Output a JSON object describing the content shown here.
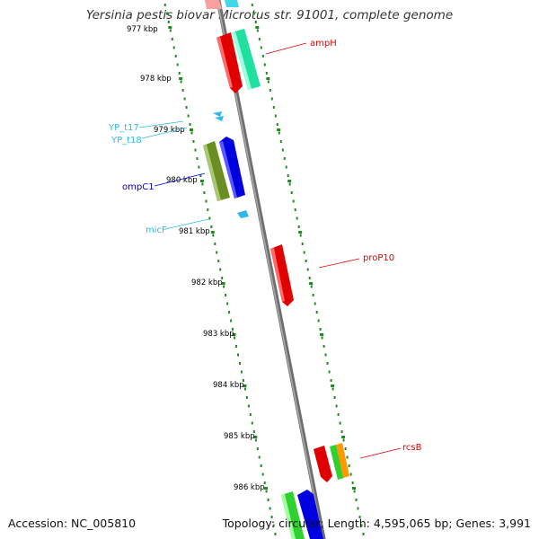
{
  "title": "Yersinia pestis biovar Microtus str. 91001, complete genome",
  "footer": {
    "accession": "Accession: NC_005810",
    "summary": "Topology: circular; Length: 4,595,065 bp; Genes: 3,991"
  },
  "ticks": [
    "977 kbp",
    "978 kbp",
    "979 kbp",
    "980 kbp",
    "981 kbp",
    "982 kbp",
    "983 kbp",
    "984 kbp",
    "985 kbp",
    "986 kbp"
  ],
  "genes": [
    {
      "label": "ampH",
      "color": "#e00000"
    },
    {
      "label": "YP_t17",
      "color": "#30b8e8"
    },
    {
      "label": "YP_t18",
      "color": "#30b8e8"
    },
    {
      "label": "ompC1",
      "color": "#0000c8"
    },
    {
      "label": "micF",
      "color": "#30b8e8"
    },
    {
      "label": "proP10",
      "color": "#e00000"
    },
    {
      "label": "rcsB",
      "color": "#e00000"
    }
  ],
  "colors": {
    "backbone": "#8c8c8c",
    "tick_dots": "#1e8c1e",
    "feature_red": "#e00000",
    "feature_teal": "#20e0a0",
    "feature_olive": "#6b8e23",
    "feature_blue": "#0000e0",
    "feature_green": "#30d030",
    "feature_orange": "#ff9900",
    "feature_cyan": "#30b8e8"
  }
}
